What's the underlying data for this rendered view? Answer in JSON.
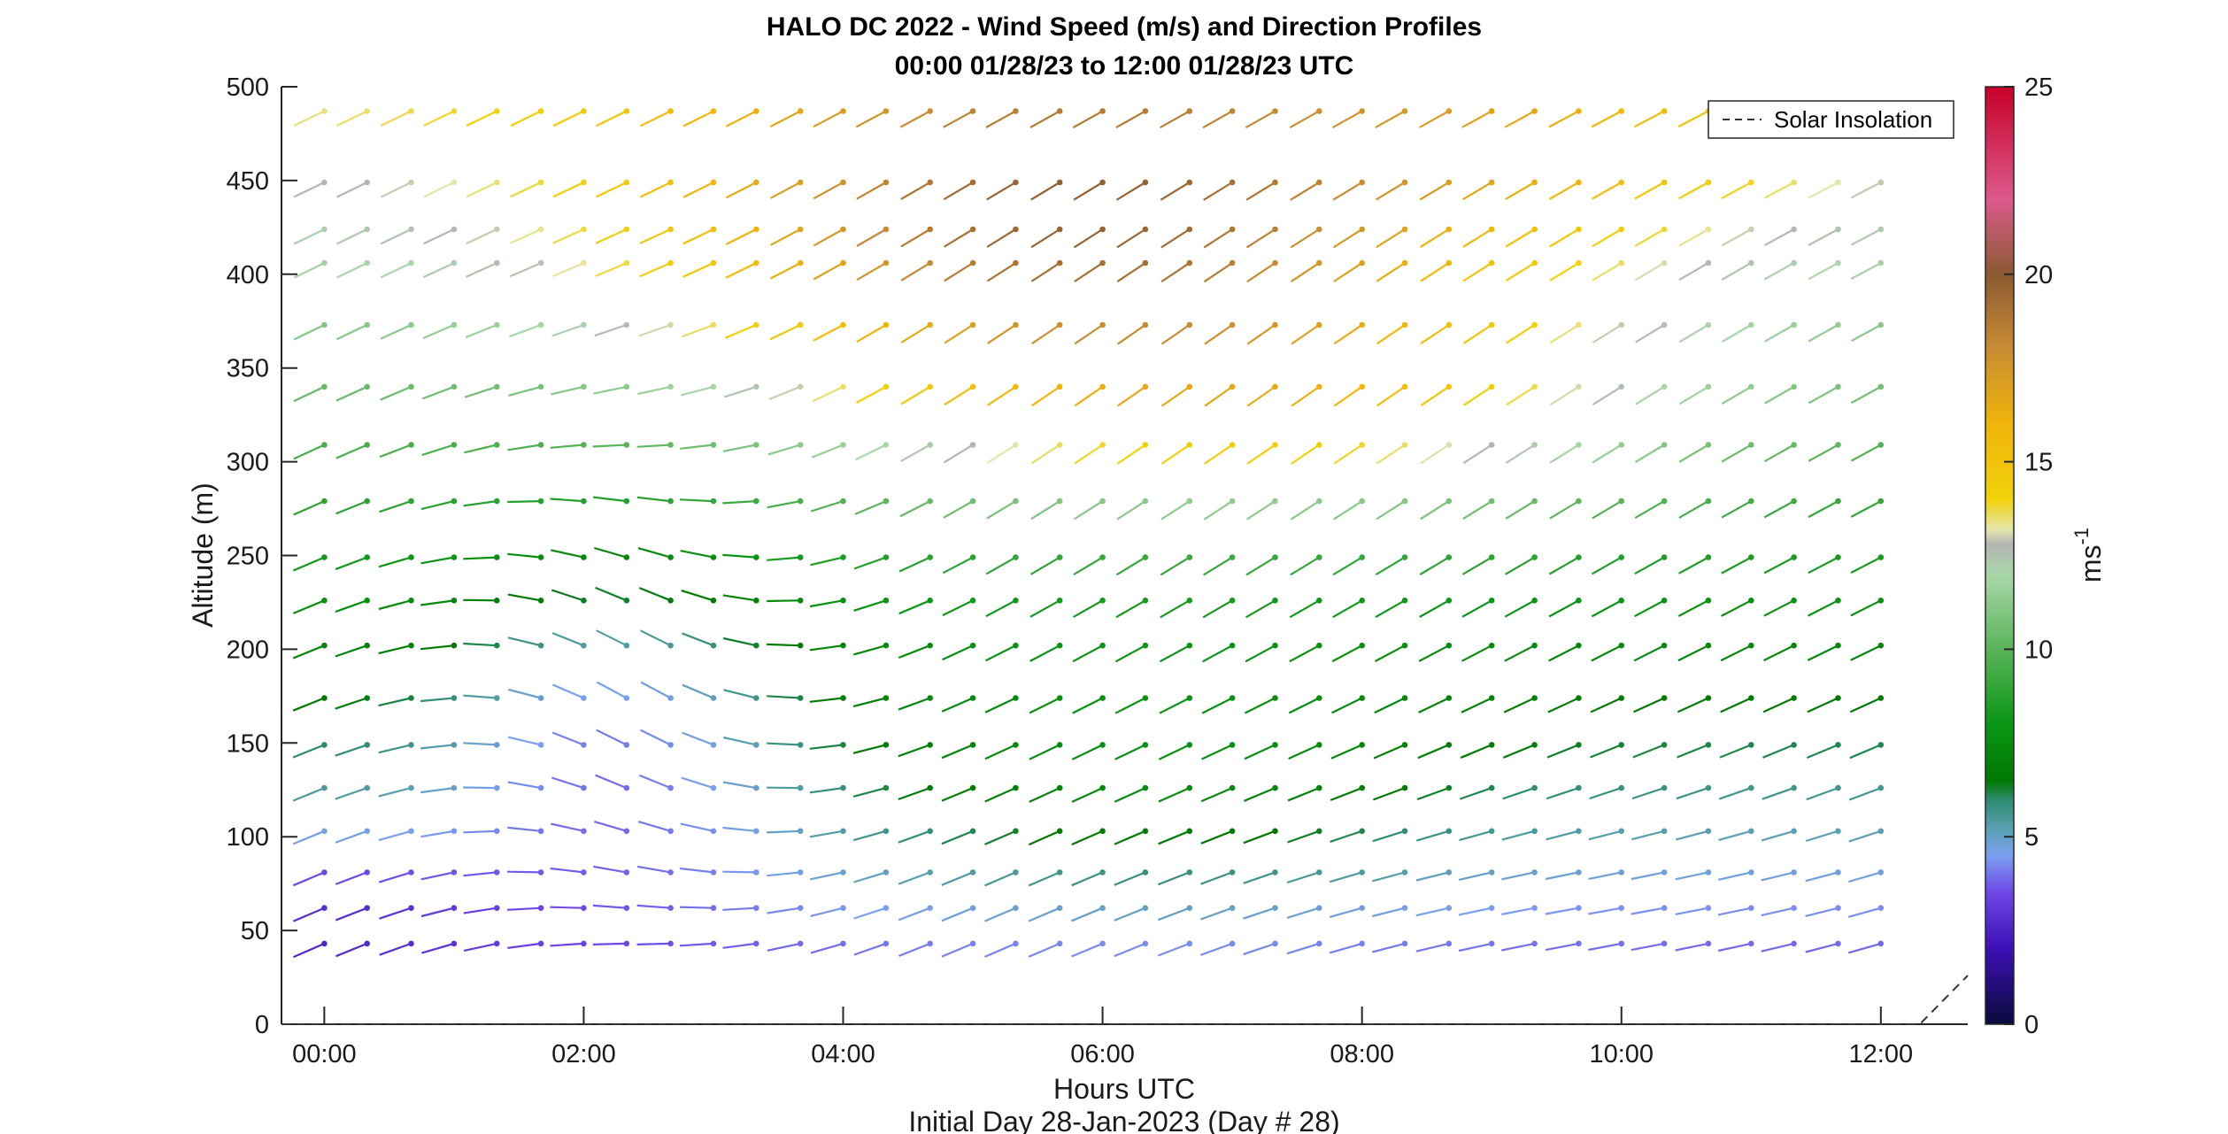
{
  "chart_data": {
    "type": "wind-barb-profile",
    "title": "HALO DC 2022 - Wind Speed (m/s) and Direction Profiles",
    "subtitle": "00:00 01/28/23 to 12:00 01/28/23  UTC",
    "xlabel": "Hours UTC",
    "ylabel": "Altitude (m)",
    "footer": "Initial Day 28-Jan-2023 (Day # 28)",
    "xlim": [
      -0.33,
      12.67
    ],
    "ylim": [
      0,
      500
    ],
    "x_ticks": [
      0,
      2,
      4,
      6,
      8,
      10,
      12
    ],
    "x_tick_labels": [
      "00:00",
      "02:00",
      "04:00",
      "06:00",
      "08:00",
      "10:00",
      "12:00"
    ],
    "y_ticks": [
      0,
      50,
      100,
      150,
      200,
      250,
      300,
      350,
      400,
      450,
      500
    ],
    "y_tick_labels": [
      "0",
      "50",
      "100",
      "150",
      "200",
      "250",
      "300",
      "350",
      "400",
      "450",
      "500"
    ],
    "grid": false,
    "legend": {
      "label": "Solar Insolation",
      "placement": "top-right",
      "style": "dashed"
    },
    "colorbar": {
      "label_base": "ms",
      "label_exp": "-1",
      "range": [
        0,
        25
      ],
      "ticks": [
        0,
        5,
        10,
        15,
        20,
        25
      ],
      "tick_labels": [
        "0",
        "5",
        "10",
        "15",
        "20",
        "25"
      ],
      "stops": [
        {
          "v": 0,
          "c": "#0a0a3c"
        },
        {
          "v": 2,
          "c": "#3c0fb4"
        },
        {
          "v": 3.5,
          "c": "#6e46e6"
        },
        {
          "v": 4.5,
          "c": "#7aa0f0"
        },
        {
          "v": 5.2,
          "c": "#5aa0b4"
        },
        {
          "v": 6,
          "c": "#2d8c6e"
        },
        {
          "v": 6.5,
          "c": "#007800"
        },
        {
          "v": 8,
          "c": "#0a9614"
        },
        {
          "v": 10,
          "c": "#5ab45a"
        },
        {
          "v": 12,
          "c": "#aad7aa"
        },
        {
          "v": 12.8,
          "c": "#b4b4b4"
        },
        {
          "v": 13.2,
          "c": "#e6e6aa"
        },
        {
          "v": 14,
          "c": "#f0d20a"
        },
        {
          "v": 16,
          "c": "#f0b40a"
        },
        {
          "v": 18,
          "c": "#c88c32"
        },
        {
          "v": 20,
          "c": "#8c5a32"
        },
        {
          "v": 22,
          "c": "#dc5a8c"
        },
        {
          "v": 25,
          "c": "#c80028"
        }
      ]
    },
    "barb_times_hours": [
      0,
      0.33,
      0.67,
      1,
      1.33,
      1.67,
      2,
      2.33,
      2.67,
      3,
      3.33,
      3.67,
      4,
      4.33,
      4.67,
      5,
      5.33,
      5.67,
      6,
      6.33,
      6.67,
      7,
      7.33,
      7.67,
      8,
      8.33,
      8.67,
      9,
      9.33,
      9.67,
      10,
      10.33,
      10.67,
      11,
      11.33,
      11.67,
      12
    ],
    "barb_altitudes_m": [
      43,
      62,
      81,
      103,
      126,
      149,
      174,
      202,
      226,
      249,
      279,
      309,
      340,
      373,
      406,
      424,
      449,
      487
    ],
    "solar_insolation": {
      "x": [
        -0.33,
        12.3,
        12.67
      ],
      "y": [
        0,
        0,
        25
      ]
    }
  }
}
